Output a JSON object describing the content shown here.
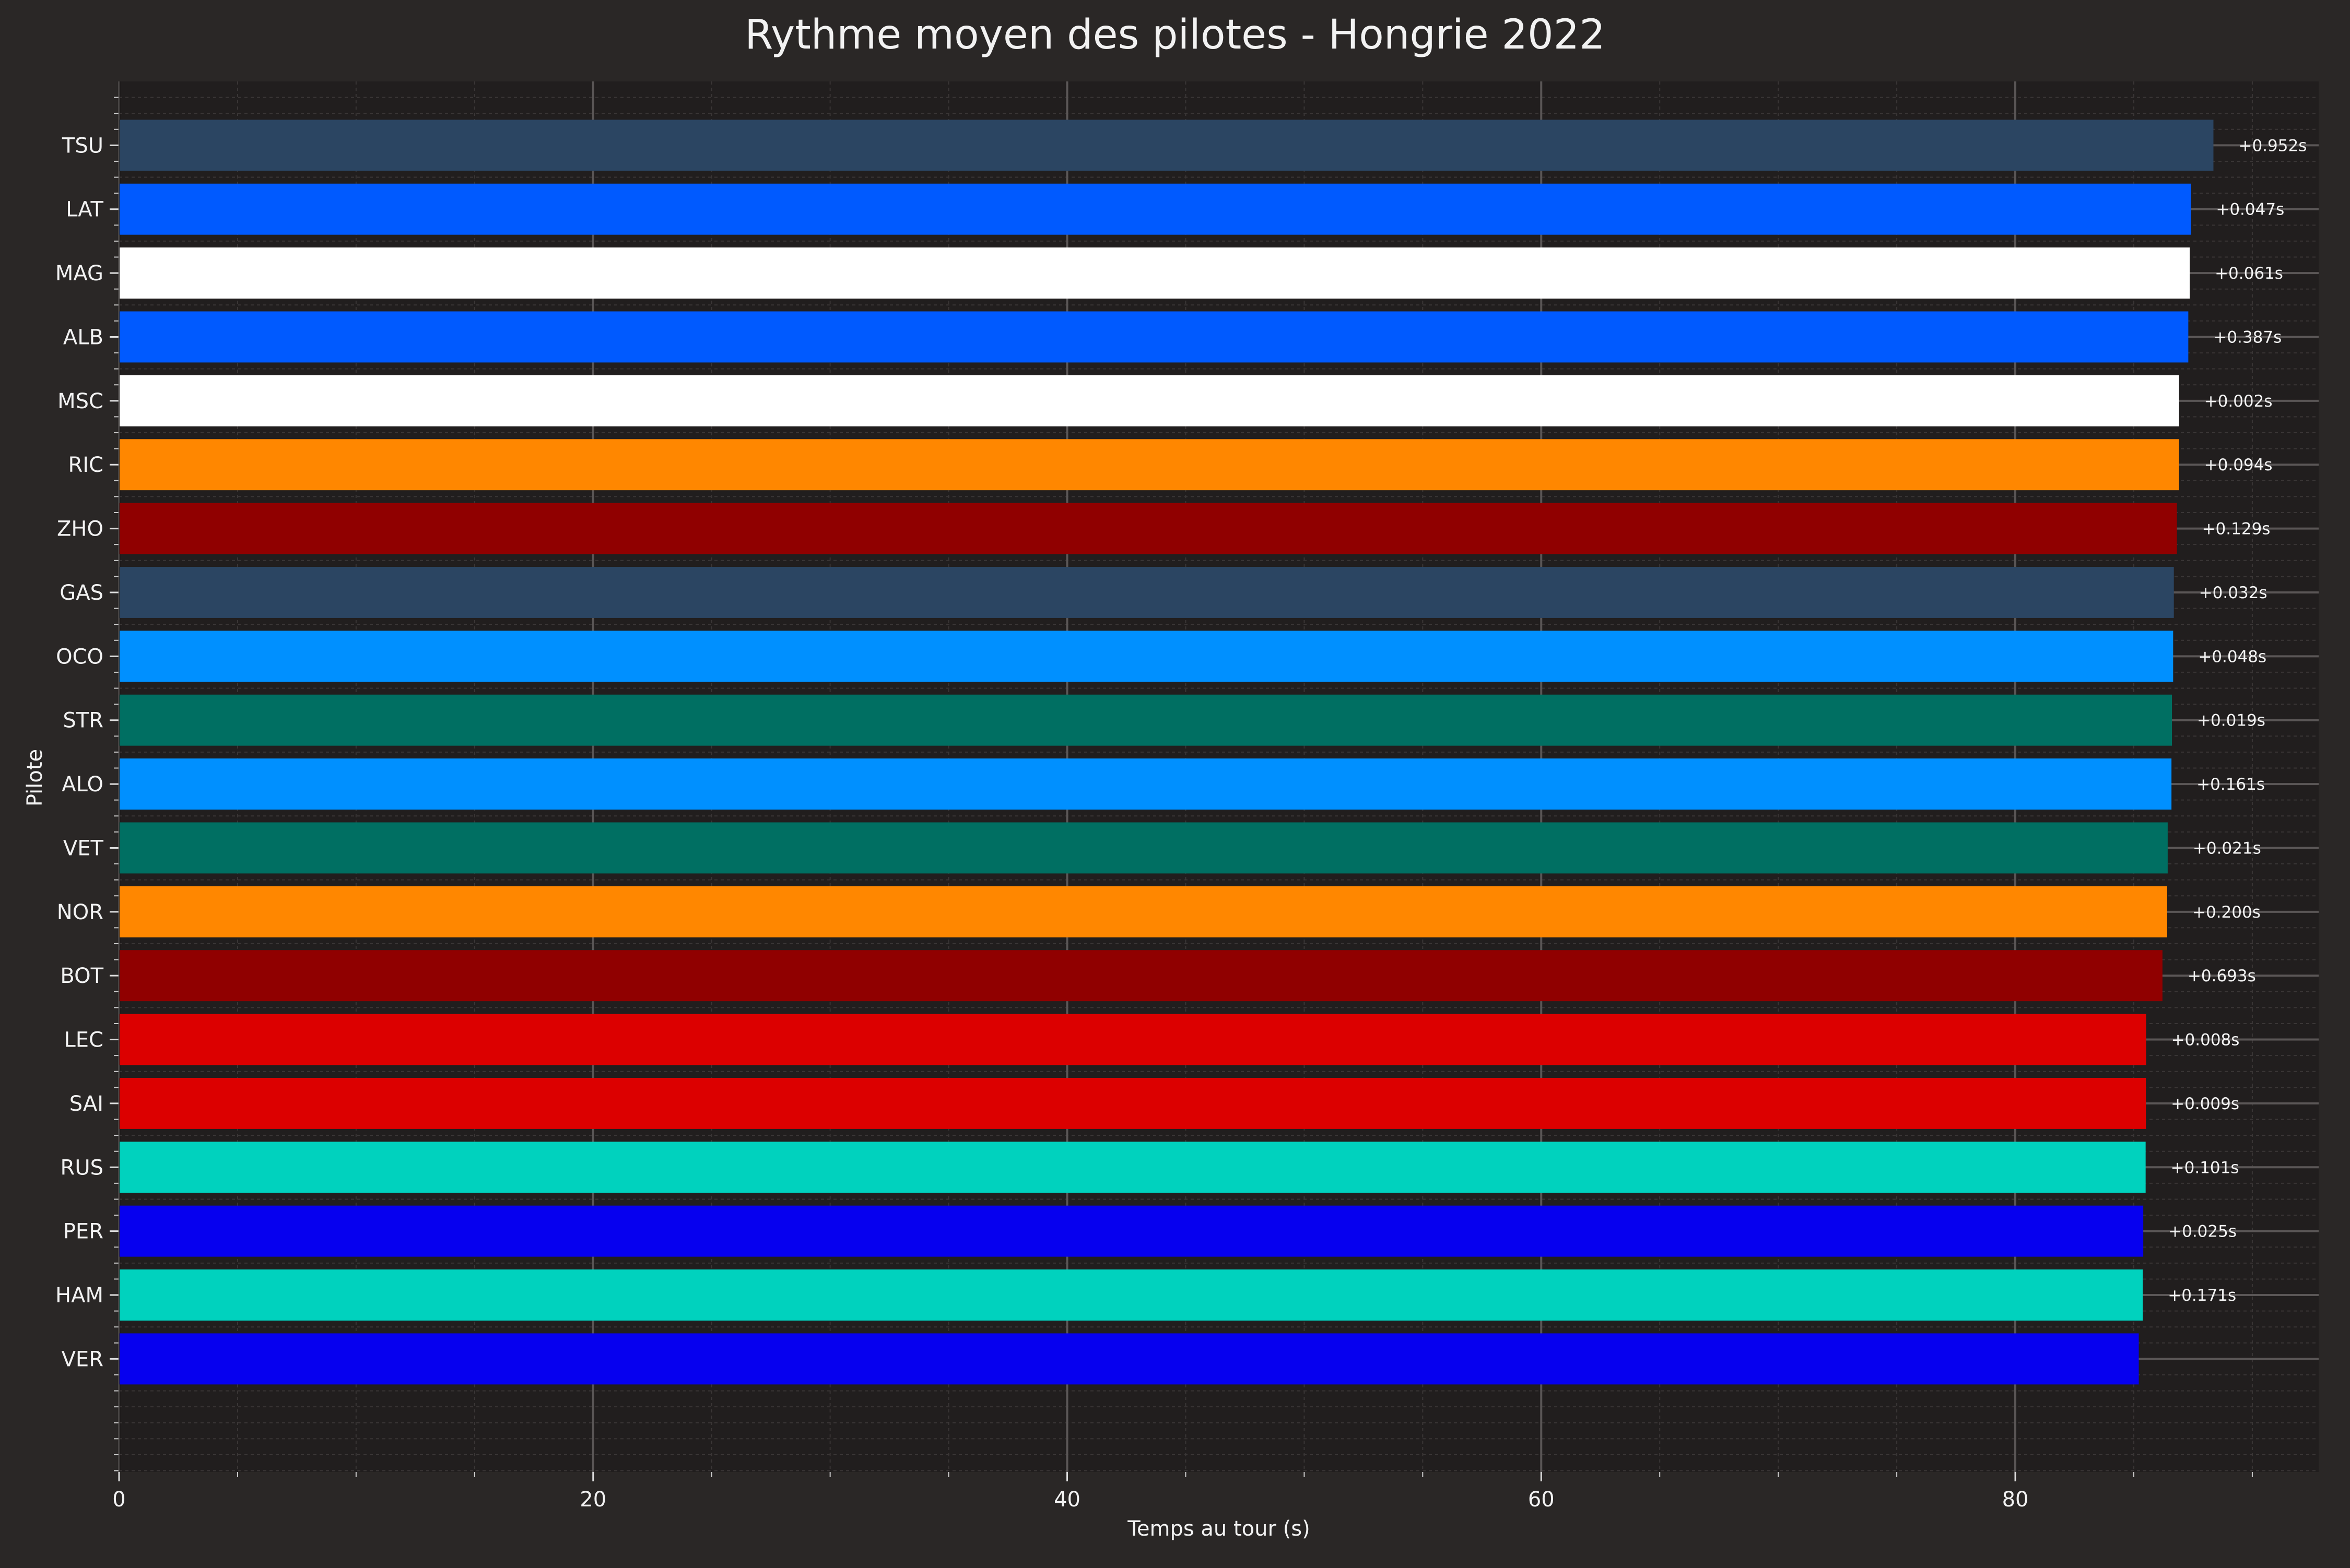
{
  "chart_data": {
    "type": "bar",
    "orientation": "horizontal",
    "title": "Rythme moyen des pilotes - Hongrie 2022",
    "xlabel": "Temps au tour (s)",
    "ylabel": "Pilote",
    "xlim": [
      0,
      92.8
    ],
    "xticks": [
      "0",
      "20",
      "40",
      "60",
      "80"
    ],
    "grid": true,
    "categories": [
      "TSU",
      "LAT",
      "MAG",
      "ALB",
      "MSC",
      "RIC",
      "ZHO",
      "GAS",
      "OCO",
      "STR",
      "ALO",
      "VET",
      "NOR",
      "BOT",
      "LEC",
      "SAI",
      "RUS",
      "PER",
      "HAM",
      "VER"
    ],
    "values": [
      88.36,
      87.41,
      87.36,
      87.3,
      86.91,
      86.91,
      86.82,
      86.69,
      86.66,
      86.61,
      86.59,
      86.43,
      86.41,
      86.21,
      85.52,
      85.51,
      85.5,
      85.4,
      85.38,
      85.21
    ],
    "gap_labels": [
      "+0.952s",
      "+0.047s",
      "+0.061s",
      "+0.387s",
      "+0.002s",
      "+0.094s",
      "+0.129s",
      "+0.032s",
      "+0.048s",
      "+0.019s",
      "+0.161s",
      "+0.021s",
      "+0.200s",
      "+0.693s",
      "+0.008s",
      "+0.009s",
      "+0.101s",
      "+0.025s",
      "+0.171s",
      ""
    ],
    "colors": [
      "#2b4562",
      "#005aff",
      "#ffffff",
      "#005aff",
      "#ffffff",
      "#ff8700",
      "#900000",
      "#2b4562",
      "#0090ff",
      "#006f62",
      "#0090ff",
      "#006f62",
      "#ff8700",
      "#900000",
      "#dc0000",
      "#dc0000",
      "#00d2be",
      "#0600ef",
      "#00d2be",
      "#0600ef"
    ]
  }
}
